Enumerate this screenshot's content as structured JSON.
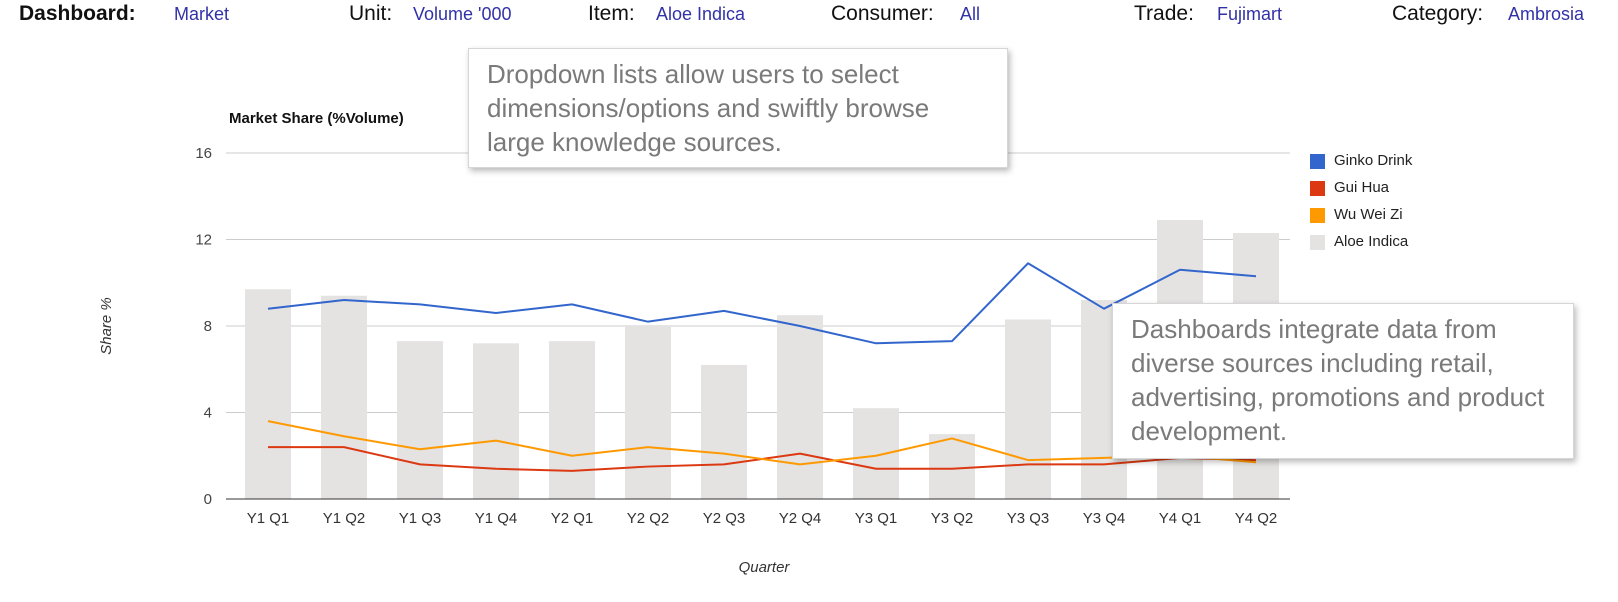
{
  "filters": [
    {
      "label": "Dashboard:",
      "value": "Market"
    },
    {
      "label": "Unit:",
      "value": "Volume '000"
    },
    {
      "label": "Item:",
      "value": "Aloe Indica"
    },
    {
      "label": "Consumer:",
      "value": "All"
    },
    {
      "label": "Trade:",
      "value": "Fujimart"
    },
    {
      "label": "Category:",
      "value": "Ambrosia"
    }
  ],
  "callouts": {
    "dropdown": "Dropdown lists allow users to select dimensions/options and swiftly browse large knowledge sources.",
    "integration": "Dashboards integrate data from diverse sources including retail, advertising, promotions and product development."
  },
  "chart_data": {
    "type": "bar",
    "title": "Market Share (%Volume)",
    "xlabel": "Quarter",
    "ylabel": "Share %",
    "ylim": [
      0,
      16
    ],
    "yticks": [
      0,
      4,
      8,
      12,
      16
    ],
    "grid": true,
    "legend_position": "right",
    "categories": [
      "Y1 Q1",
      "Y1 Q2",
      "Y1 Q3",
      "Y1 Q4",
      "Y2 Q1",
      "Y2 Q2",
      "Y2 Q3",
      "Y2 Q4",
      "Y3 Q1",
      "Y3 Q2",
      "Y3 Q3",
      "Y3 Q4",
      "Y4 Q1",
      "Y4 Q2"
    ],
    "bars": {
      "name": "Aloe Indica",
      "color": "#e4e3e2",
      "values": [
        9.7,
        9.4,
        7.3,
        7.2,
        7.3,
        8.0,
        6.2,
        8.5,
        4.2,
        3.0,
        8.3,
        9.2,
        12.9,
        12.3
      ]
    },
    "lines": [
      {
        "name": "Ginko Drink",
        "color": "#3366cc",
        "values": [
          8.8,
          9.2,
          9.0,
          8.6,
          9.0,
          8.2,
          8.7,
          8.0,
          7.2,
          7.3,
          10.9,
          8.8,
          10.6,
          10.3
        ]
      },
      {
        "name": "Gui Hua",
        "color": "#dc3912",
        "values": [
          2.4,
          2.4,
          1.6,
          1.4,
          1.3,
          1.5,
          1.6,
          2.1,
          1.4,
          1.4,
          1.6,
          1.6,
          1.9,
          1.8
        ]
      },
      {
        "name": "Wu Wei Zi",
        "color": "#ff9900",
        "values": [
          3.6,
          2.9,
          2.3,
          2.7,
          2.0,
          2.4,
          2.1,
          1.6,
          2.0,
          2.8,
          1.8,
          1.9,
          2.0,
          1.7
        ]
      }
    ],
    "legend": [
      {
        "name": "Ginko Drink",
        "color": "#3366cc"
      },
      {
        "name": "Gui Hua",
        "color": "#dc3912"
      },
      {
        "name": "Wu Wei Zi",
        "color": "#ff9900"
      },
      {
        "name": "Aloe Indica",
        "color": "#e4e3e2"
      }
    ]
  }
}
